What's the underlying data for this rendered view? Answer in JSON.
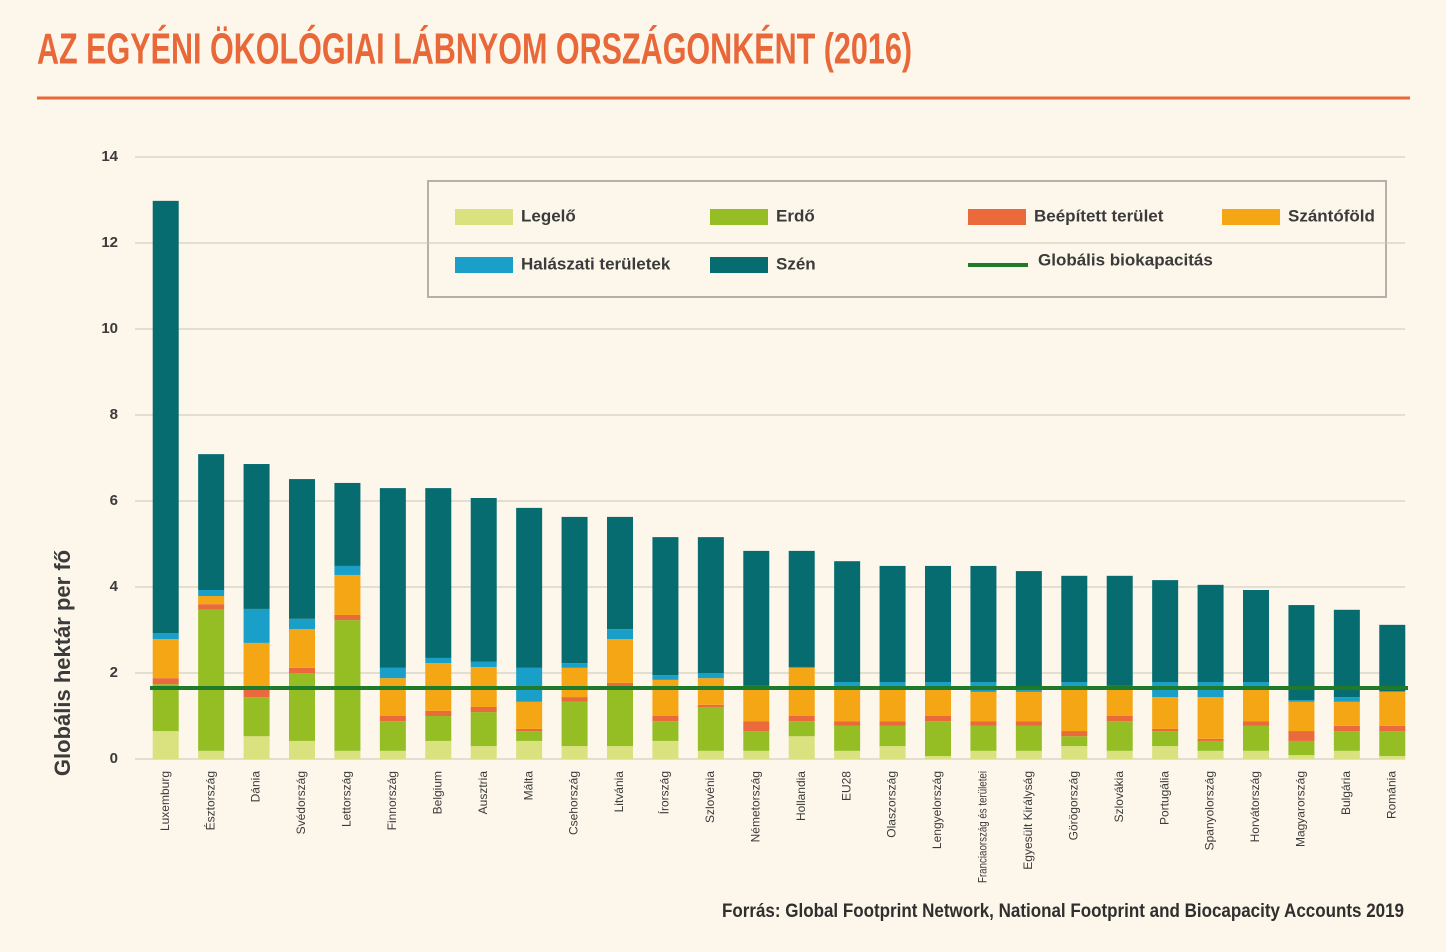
{
  "chart_data": {
    "type": "stacked_bar",
    "title": "AZ EGYÉNI ÖKOLÓGIAI LÁBNYOM ORSZÁGONKÉNT (2016)",
    "y_label": "Globális hektár per fő",
    "source": "Forrás: Global Footprint Network, National Footprint and Biocapacity Accounts 2019",
    "categories": [
      "Luxemburg",
      "Észtország",
      "Dánia",
      "Svédország",
      "Lettország",
      "Finnország",
      "Belgium",
      "Ausztria",
      "Málta",
      "Csehország",
      "Litvánia",
      "Írország",
      "Szlovénia",
      "Németország",
      "Hollandia",
      "EU28",
      "Olaszország",
      "Lengyelország",
      "Franciaország és területei",
      "Egyesült Királyság",
      "Görögország",
      "Szlovákia",
      "Portugália",
      "Spanyolország",
      "Horvátország",
      "Magyarország",
      "Bulgária",
      "Románia"
    ],
    "series": [
      {
        "name": "Legelő",
        "color": "#d9e27f",
        "values": [
          0.65,
          0.19,
          0.53,
          0.42,
          0.19,
          0.19,
          0.42,
          0.3,
          0.42,
          0.3,
          0.3,
          0.42,
          0.19,
          0.19,
          0.53,
          0.19,
          0.3,
          0.07,
          0.19,
          0.19,
          0.3,
          0.19,
          0.3,
          0.19,
          0.19,
          0.09,
          0.19,
          0.07
        ]
      },
      {
        "name": "Erdő",
        "color": "#94be24",
        "values": [
          1.09,
          3.28,
          0.91,
          1.58,
          3.04,
          0.69,
          0.58,
          0.79,
          0.23,
          1.03,
          1.37,
          0.46,
          1.02,
          0.46,
          0.35,
          0.58,
          0.47,
          0.81,
          0.58,
          0.58,
          0.23,
          0.69,
          0.35,
          0.23,
          0.58,
          0.33,
          0.46,
          0.58
        ]
      },
      {
        "name": "Beépített terület",
        "color": "#ea6a3c",
        "values": [
          0.14,
          0.13,
          0.21,
          0.12,
          0.12,
          0.12,
          0.12,
          0.12,
          0.05,
          0.11,
          0.1,
          0.12,
          0.05,
          0.23,
          0.12,
          0.11,
          0.11,
          0.12,
          0.11,
          0.11,
          0.12,
          0.12,
          0.05,
          0.05,
          0.11,
          0.23,
          0.12,
          0.12
        ]
      },
      {
        "name": "Szántóföld",
        "color": "#f5a614",
        "values": [
          0.91,
          0.19,
          1.05,
          0.9,
          0.93,
          0.88,
          1.11,
          0.93,
          0.63,
          0.68,
          1.02,
          0.84,
          0.62,
          0.77,
          1.12,
          0.79,
          0.79,
          0.67,
          0.68,
          0.68,
          1.02,
          0.67,
          0.74,
          0.97,
          0.79,
          0.68,
          0.56,
          0.79
        ]
      },
      {
        "name": "Halászati területek",
        "color": "#1aa0c8",
        "values": [
          0.14,
          0.14,
          0.79,
          0.24,
          0.21,
          0.24,
          0.12,
          0.12,
          0.79,
          0.11,
          0.23,
          0.11,
          0.12,
          0.05,
          0.02,
          0.12,
          0.12,
          0.12,
          0.23,
          0.04,
          0.12,
          0.03,
          0.35,
          0.35,
          0.12,
          0.04,
          0.11,
          0.02
        ]
      },
      {
        "name": "Szén",
        "color": "#066c70",
        "values": [
          10.05,
          3.16,
          3.37,
          3.25,
          1.93,
          4.18,
          3.95,
          3.81,
          3.72,
          3.4,
          2.61,
          3.21,
          3.16,
          3.14,
          2.7,
          2.81,
          2.7,
          2.7,
          2.7,
          2.77,
          2.47,
          2.56,
          2.37,
          2.26,
          2.14,
          2.21,
          2.03,
          1.54
        ]
      }
    ],
    "reference_line": {
      "name": "Globális biokapacitás",
      "value": 1.65,
      "color": "#1f7a2a"
    },
    "ylim": [
      0,
      14
    ],
    "yticks": [
      0,
      2,
      4,
      6,
      8,
      10,
      12,
      14
    ],
    "grid": true
  }
}
